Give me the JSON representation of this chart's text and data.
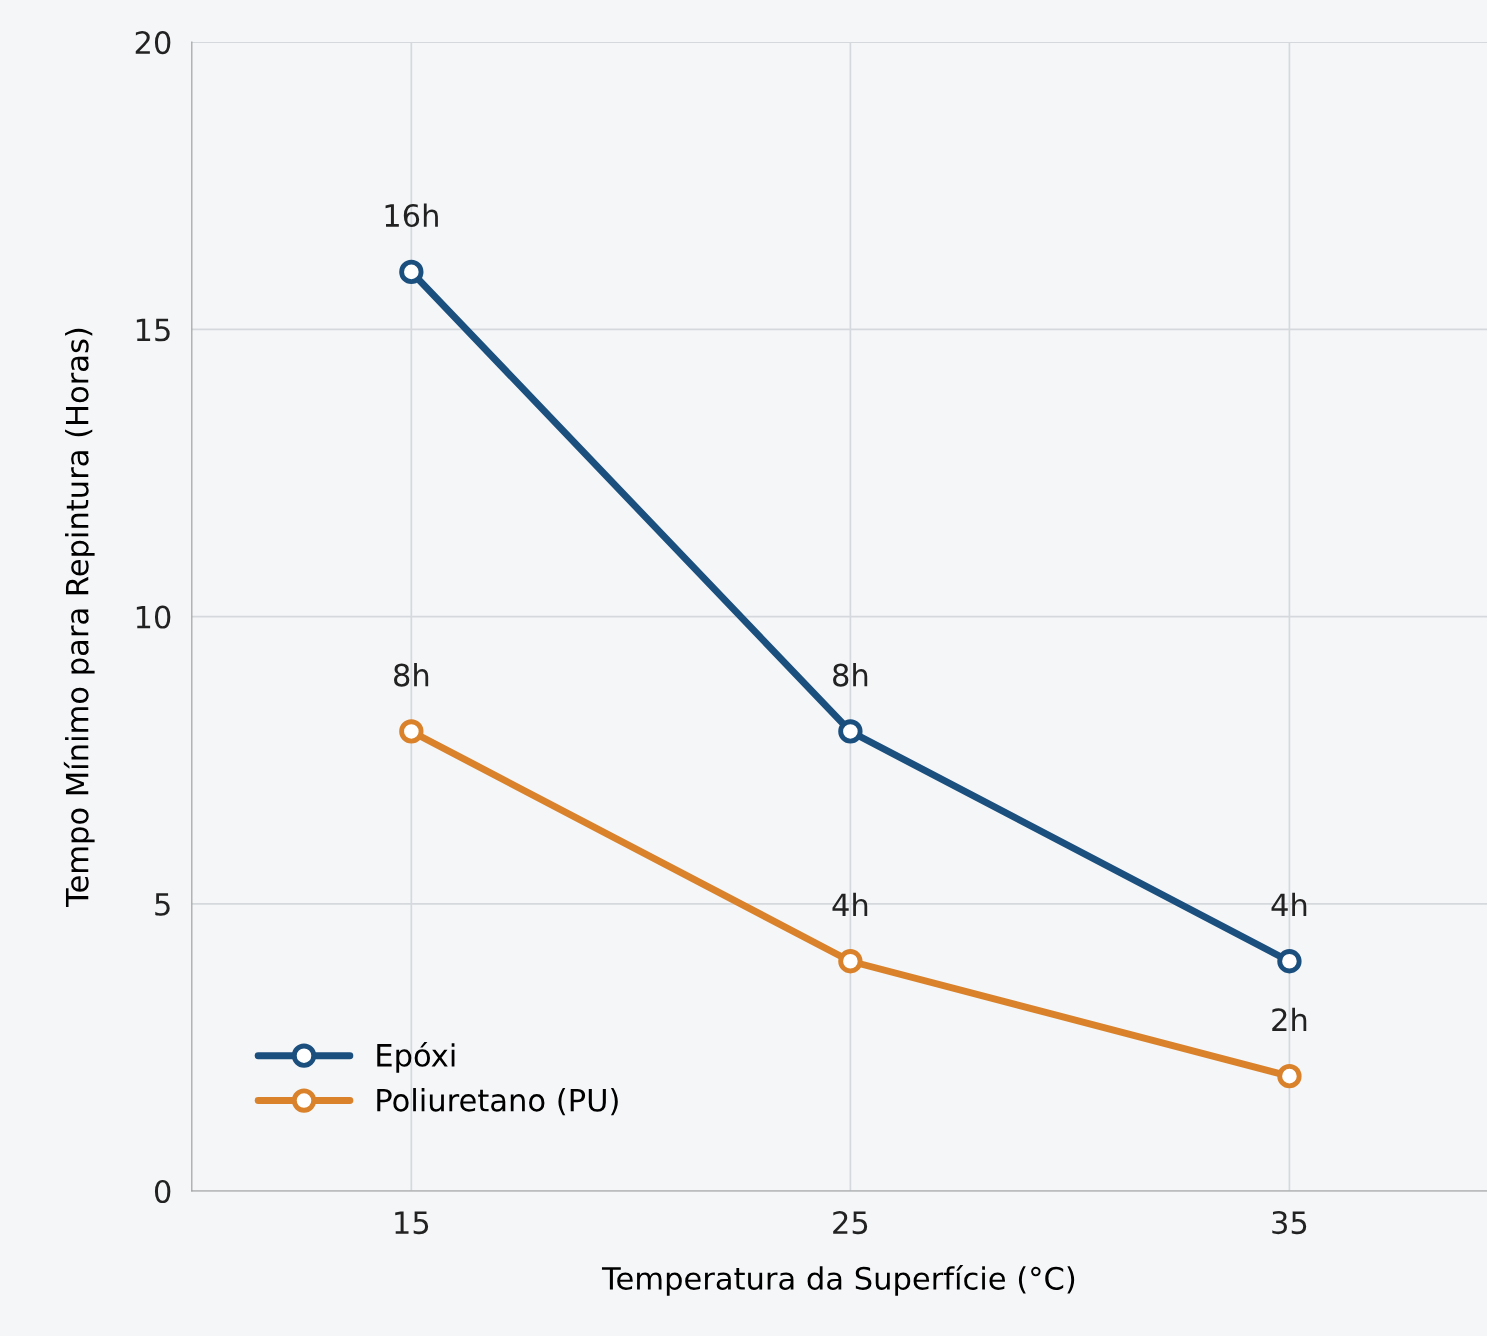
{
  "chart_data": {
    "type": "line",
    "xlabel": "Temperatura da Superfície (°C)",
    "ylabel": "Tempo Mínimo para Repintura (Horas)",
    "x": [
      15,
      25,
      35
    ],
    "series": [
      {
        "name": "Epóxi",
        "color": "#1b4f7e",
        "values": [
          16,
          8,
          4
        ],
        "value_labels": [
          "16h",
          "8h",
          "4h"
        ]
      },
      {
        "name": "Poliuretano (PU)",
        "color": "#d9822b",
        "values": [
          8,
          4,
          2
        ],
        "value_labels": [
          "8h",
          "4h",
          "2h"
        ]
      }
    ],
    "xlim": [
      10,
      39.5
    ],
    "xticks": [
      15,
      25,
      35
    ],
    "ylim": [
      0,
      20
    ],
    "yticks": [
      0,
      5,
      10,
      15,
      20
    ],
    "grid": true,
    "legend": "bottom left",
    "marker": "circle",
    "line_style": "solid"
  }
}
